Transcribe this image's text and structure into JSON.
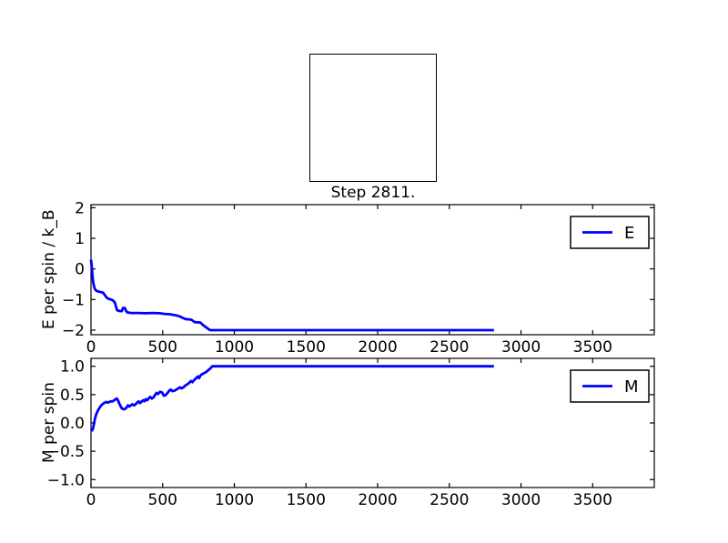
{
  "figure": {
    "title": "Step 2811.",
    "background": "#ffffff",
    "lattice_box": {
      "fill": "#ffffff",
      "border_color": "#000000"
    }
  },
  "chart_data": [
    {
      "type": "line",
      "name": "energy-vs-step",
      "ylabel": "E per spin / k_B",
      "xlabel": "",
      "xlim": [
        0,
        3930
      ],
      "ylim": [
        -2.15,
        2.1
      ],
      "xticks": [
        0,
        500,
        1000,
        1500,
        2000,
        2500,
        3000,
        3500
      ],
      "xtick_labels": [
        "0",
        "500",
        "1000",
        "1500",
        "2000",
        "2500",
        "3000",
        "3500"
      ],
      "yticks": [
        2,
        1,
        0,
        -1,
        -2
      ],
      "ytick_labels": [
        "2",
        "1",
        "0",
        "−1",
        "−2"
      ],
      "grid": false,
      "legend": {
        "label": "E",
        "position": "upper right",
        "color": "#0000ff"
      },
      "series": [
        {
          "name": "E",
          "color": "#0000ff",
          "x": [
            0,
            5,
            8,
            12,
            16,
            20,
            25,
            30,
            40,
            55,
            70,
            85,
            100,
            112,
            125,
            150,
            160,
            168,
            175,
            182,
            195,
            215,
            222,
            237,
            243,
            252,
            280,
            330,
            380,
            430,
            480,
            512,
            548,
            572,
            595,
            618,
            640,
            660,
            700,
            712,
            724,
            762,
            778,
            792,
            806,
            820,
            832,
            2811
          ],
          "y": [
            0.3,
            0.1,
            -0.1,
            -0.3,
            -0.45,
            -0.55,
            -0.63,
            -0.68,
            -0.72,
            -0.74,
            -0.76,
            -0.78,
            -0.88,
            -0.95,
            -0.98,
            -1.02,
            -1.06,
            -1.12,
            -1.25,
            -1.35,
            -1.37,
            -1.38,
            -1.28,
            -1.28,
            -1.36,
            -1.42,
            -1.44,
            -1.44,
            -1.45,
            -1.44,
            -1.45,
            -1.47,
            -1.48,
            -1.5,
            -1.52,
            -1.55,
            -1.6,
            -1.64,
            -1.66,
            -1.7,
            -1.74,
            -1.75,
            -1.82,
            -1.87,
            -1.92,
            -1.97,
            -2.0,
            -2.0
          ]
        }
      ]
    },
    {
      "type": "line",
      "name": "magnetization-vs-step",
      "ylabel": "M per spin",
      "xlabel": "",
      "xlim": [
        0,
        3930
      ],
      "ylim": [
        -1.14,
        1.14
      ],
      "xticks": [
        0,
        500,
        1000,
        1500,
        2000,
        2500,
        3000,
        3500
      ],
      "xtick_labels": [
        "0",
        "500",
        "1000",
        "1500",
        "2000",
        "2500",
        "3000",
        "3500"
      ],
      "yticks": [
        1.0,
        0.5,
        0.0,
        -0.5,
        -1.0
      ],
      "ytick_labels": [
        "1.0",
        "0.5",
        "0.0",
        "−0.5",
        "−1.0"
      ],
      "grid": false,
      "legend": {
        "label": "M",
        "position": "upper right",
        "color": "#0000ff"
      },
      "series": [
        {
          "name": "M",
          "color": "#0000ff",
          "x": [
            0,
            8,
            14,
            20,
            28,
            36,
            48,
            60,
            75,
            90,
            105,
            120,
            135,
            150,
            162,
            172,
            180,
            188,
            196,
            206,
            214,
            228,
            240,
            250,
            258,
            266,
            278,
            288,
            300,
            312,
            322,
            332,
            342,
            354,
            364,
            372,
            382,
            392,
            404,
            414,
            424,
            436,
            448,
            458,
            468,
            482,
            496,
            508,
            520,
            534,
            546,
            556,
            568,
            582,
            596,
            608,
            622,
            632,
            646,
            658,
            672,
            686,
            698,
            708,
            720,
            734,
            744,
            754,
            764,
            776,
            790,
            804,
            818,
            832,
            846,
            2811
          ],
          "y": [
            -0.1,
            -0.13,
            -0.1,
            -0.02,
            0.08,
            0.15,
            0.22,
            0.27,
            0.32,
            0.35,
            0.37,
            0.36,
            0.38,
            0.38,
            0.4,
            0.42,
            0.43,
            0.4,
            0.35,
            0.3,
            0.26,
            0.24,
            0.25,
            0.28,
            0.31,
            0.29,
            0.31,
            0.33,
            0.31,
            0.33,
            0.36,
            0.38,
            0.35,
            0.38,
            0.4,
            0.38,
            0.42,
            0.4,
            0.44,
            0.46,
            0.43,
            0.45,
            0.5,
            0.53,
            0.51,
            0.55,
            0.54,
            0.48,
            0.49,
            0.53,
            0.57,
            0.59,
            0.56,
            0.57,
            0.59,
            0.61,
            0.63,
            0.61,
            0.63,
            0.66,
            0.68,
            0.71,
            0.74,
            0.72,
            0.76,
            0.79,
            0.82,
            0.79,
            0.84,
            0.86,
            0.88,
            0.9,
            0.93,
            0.96,
            1.0,
            1.0
          ]
        }
      ]
    }
  ]
}
